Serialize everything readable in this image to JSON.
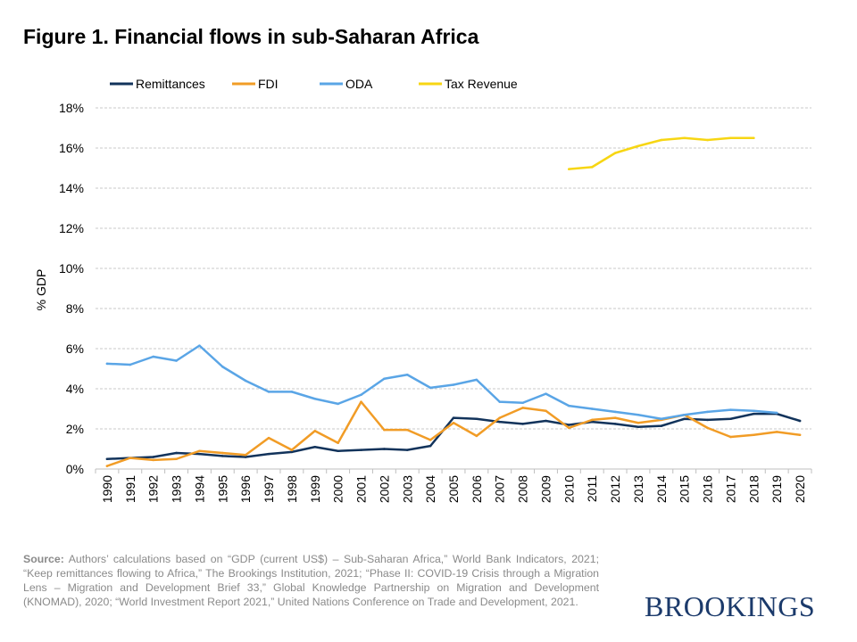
{
  "title": "Figure 1. Financial flows in sub-Saharan Africa",
  "source": {
    "label": "Source:",
    "text": "Authors’ calculations based on “GDP (current US$) – Sub-Saharan Africa,” World Bank Indicators, 2021; “Keep remittances flowing to Africa,” The Brookings Institution, 2021; “Phase II: COVID-19 Crisis through a Migration Lens – Migration and Development Brief 33,” Global Knowledge Partnership on Migration and Development (KNOMAD), 2020; “World Investment Report 2021,” United Nations Conference on Trade and Development, 2021."
  },
  "brand": "BROOKINGS",
  "chart_data": {
    "type": "line",
    "title": "Figure 1. Financial flows in sub-Saharan Africa",
    "xlabel": "",
    "ylabel": "% GDP",
    "ylim": [
      0,
      18
    ],
    "yticks": [
      "0%",
      "2%",
      "4%",
      "6%",
      "8%",
      "10%",
      "12%",
      "14%",
      "16%",
      "18%"
    ],
    "grid": true,
    "legend_position": "top",
    "categories": [
      "1990",
      "1991",
      "1992",
      "1993",
      "1994",
      "1995",
      "1996",
      "1997",
      "1998",
      "1999",
      "2000",
      "2001",
      "2002",
      "2003",
      "2004",
      "2005",
      "2006",
      "2007",
      "2008",
      "2009",
      "2010",
      "2011",
      "2012",
      "2013",
      "2014",
      "2015",
      "2016",
      "2017",
      "2018",
      "2019",
      "2020"
    ],
    "series": [
      {
        "name": "Remittances",
        "color": "#12335b",
        "values": [
          0.5,
          0.55,
          0.6,
          0.8,
          0.75,
          0.65,
          0.6,
          0.75,
          0.85,
          1.1,
          0.9,
          0.95,
          1.0,
          0.95,
          1.15,
          2.55,
          2.5,
          2.35,
          2.25,
          2.4,
          2.2,
          2.35,
          2.25,
          2.1,
          2.15,
          2.5,
          2.45,
          2.5,
          2.75,
          2.75,
          2.4
        ]
      },
      {
        "name": "FDI",
        "color": "#f19c26",
        "values": [
          0.15,
          0.55,
          0.45,
          0.5,
          0.9,
          0.8,
          0.7,
          1.55,
          0.95,
          1.9,
          1.3,
          3.35,
          1.95,
          1.95,
          1.45,
          2.3,
          1.65,
          2.55,
          3.05,
          2.9,
          2.05,
          2.45,
          2.55,
          2.3,
          2.45,
          2.7,
          2.05,
          1.6,
          1.7,
          1.85,
          1.7
        ]
      },
      {
        "name": "ODA",
        "color": "#5aa5e6",
        "values": [
          5.25,
          5.2,
          5.6,
          5.4,
          6.15,
          5.1,
          4.4,
          3.85,
          3.85,
          3.5,
          3.25,
          3.7,
          4.5,
          4.7,
          4.05,
          4.2,
          4.45,
          3.35,
          3.3,
          3.75,
          3.15,
          3.0,
          2.85,
          2.7,
          2.5,
          2.7,
          2.85,
          2.95,
          2.9,
          2.8,
          null
        ]
      },
      {
        "name": "Tax Revenue",
        "color": "#f7d613",
        "values": [
          null,
          null,
          null,
          null,
          null,
          null,
          null,
          null,
          null,
          null,
          null,
          null,
          null,
          null,
          null,
          null,
          null,
          null,
          null,
          null,
          14.95,
          15.05,
          15.75,
          16.1,
          16.4,
          16.5,
          16.4,
          16.5,
          16.5,
          null,
          null
        ]
      }
    ]
  }
}
